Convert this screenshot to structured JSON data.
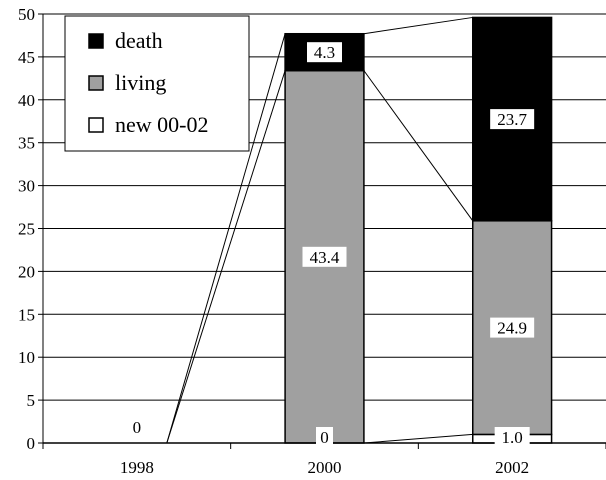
{
  "chart_data": {
    "type": "bar",
    "stacked": true,
    "categories": [
      "1998",
      "2000",
      "2002"
    ],
    "series": [
      {
        "name": "new 00-02",
        "color": "#ffffff",
        "values": [
          0,
          0,
          1.0
        ],
        "labels": [
          "",
          "0",
          "1.0"
        ]
      },
      {
        "name": "living",
        "color": "#a0a0a0",
        "values": [
          0,
          43.4,
          24.9
        ],
        "labels": [
          "",
          "43.4",
          "24.9"
        ]
      },
      {
        "name": "death",
        "color": "#000000",
        "values": [
          0,
          4.3,
          23.7
        ],
        "labels": [
          "",
          "4.3",
          "23.7"
        ]
      }
    ],
    "category_total_labels": [
      "0",
      "",
      ""
    ],
    "ylim": [
      0,
      50
    ],
    "yticks": [
      0,
      5,
      10,
      15,
      20,
      25,
      30,
      35,
      40,
      45,
      50
    ],
    "grid": true,
    "legend_position": "top-left",
    "series_connector_lines": true
  }
}
